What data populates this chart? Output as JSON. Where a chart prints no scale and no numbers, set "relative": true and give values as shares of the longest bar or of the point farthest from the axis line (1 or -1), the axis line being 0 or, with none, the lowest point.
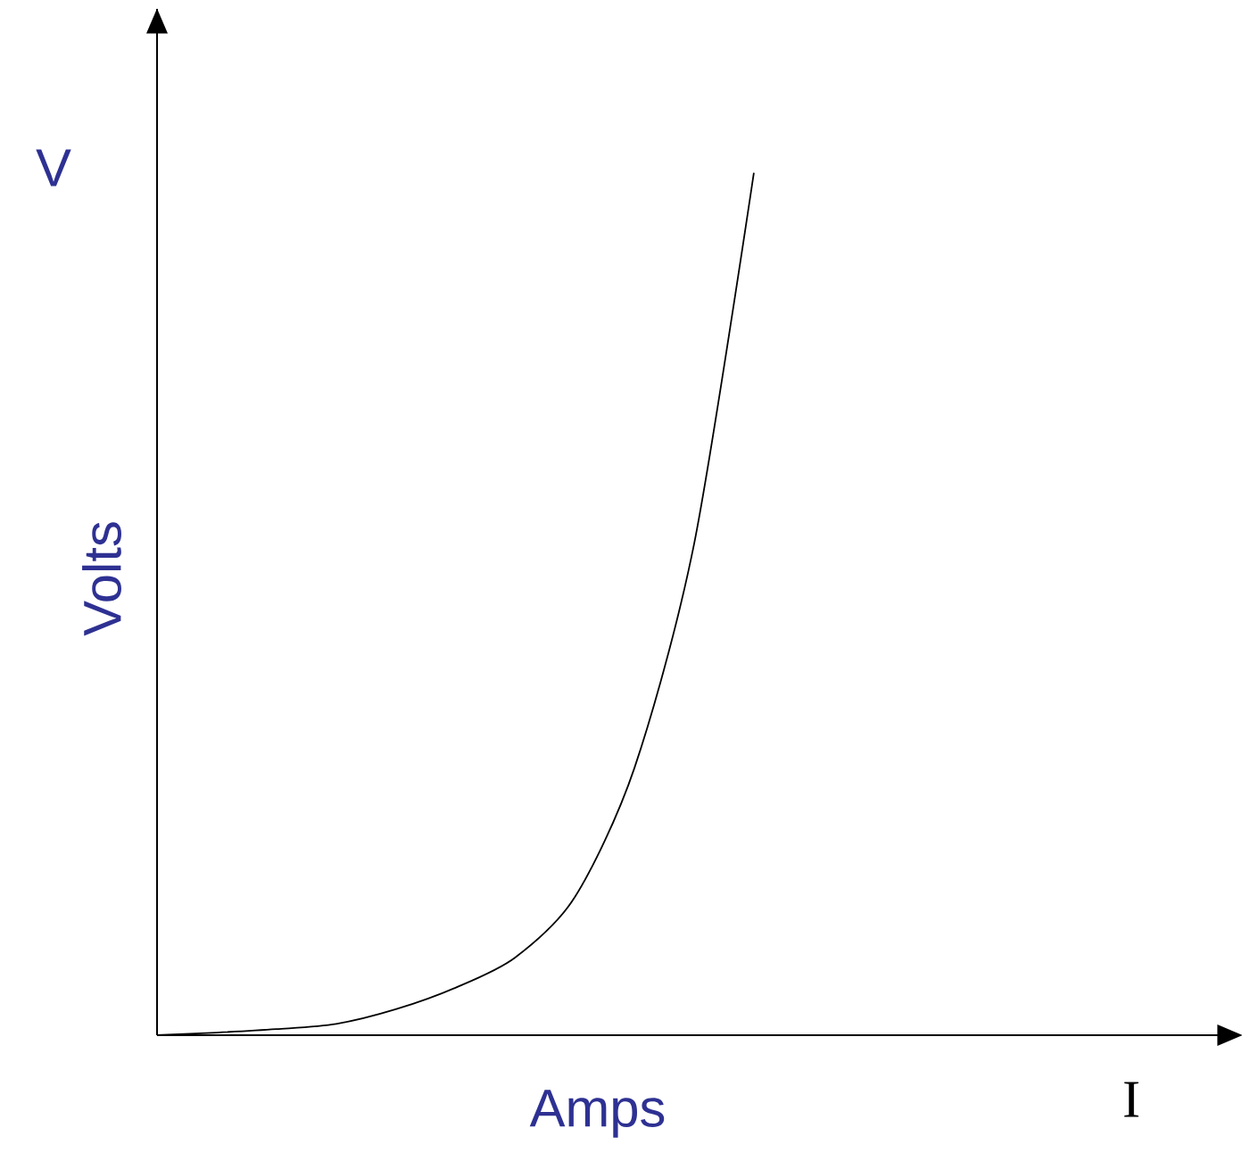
{
  "chart_data": {
    "type": "line",
    "relative": true,
    "xlabel": "Amps",
    "ylabel": "Volts",
    "annotations": [
      "V",
      "I"
    ],
    "categories": [
      null,
      null,
      null,
      null,
      null,
      null,
      null,
      null,
      null,
      null,
      null
    ],
    "series": [
      {
        "color": "#000000",
        "values": [
          0,
          0.003,
          0.007,
          0.013,
          0.03,
          0.055,
          0.09,
          0.16,
          0.31,
          0.57,
          1.0
        ]
      }
    ],
    "marker": "none"
  }
}
